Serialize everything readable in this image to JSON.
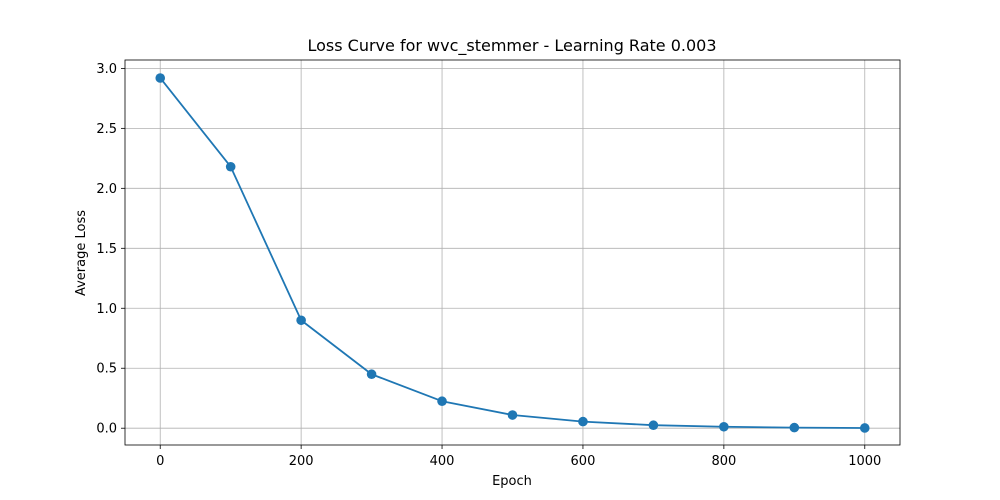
{
  "chart_data": {
    "type": "line",
    "title": "Loss Curve for wvc_stemmer - Learning Rate 0.003",
    "xlabel": "Epoch",
    "ylabel": "Average Loss",
    "x": [
      0,
      100,
      200,
      300,
      400,
      500,
      600,
      700,
      800,
      900,
      1000
    ],
    "series": [
      {
        "name": "",
        "values": [
          2.92,
          2.18,
          0.9,
          0.45,
          0.225,
          0.11,
          0.055,
          0.025,
          0.012,
          0.005,
          0.002
        ]
      }
    ],
    "xlim": [
      -50,
      1050
    ],
    "ylim": [
      -0.14,
      3.07
    ],
    "xticks": [
      0,
      200,
      400,
      600,
      800,
      1000
    ],
    "xtick_labels": [
      "0",
      "200",
      "400",
      "600",
      "800",
      "1000"
    ],
    "yticks": [
      0,
      0.5,
      1,
      1.5,
      2,
      2.5,
      3
    ],
    "ytick_labels": [
      "0.0",
      "0.5",
      "1.0",
      "1.5",
      "2.0",
      "2.5",
      "3.0"
    ],
    "grid": true,
    "marker": "circle",
    "line_color": "#1f77b4",
    "grid_color": "#b0b0b0"
  }
}
